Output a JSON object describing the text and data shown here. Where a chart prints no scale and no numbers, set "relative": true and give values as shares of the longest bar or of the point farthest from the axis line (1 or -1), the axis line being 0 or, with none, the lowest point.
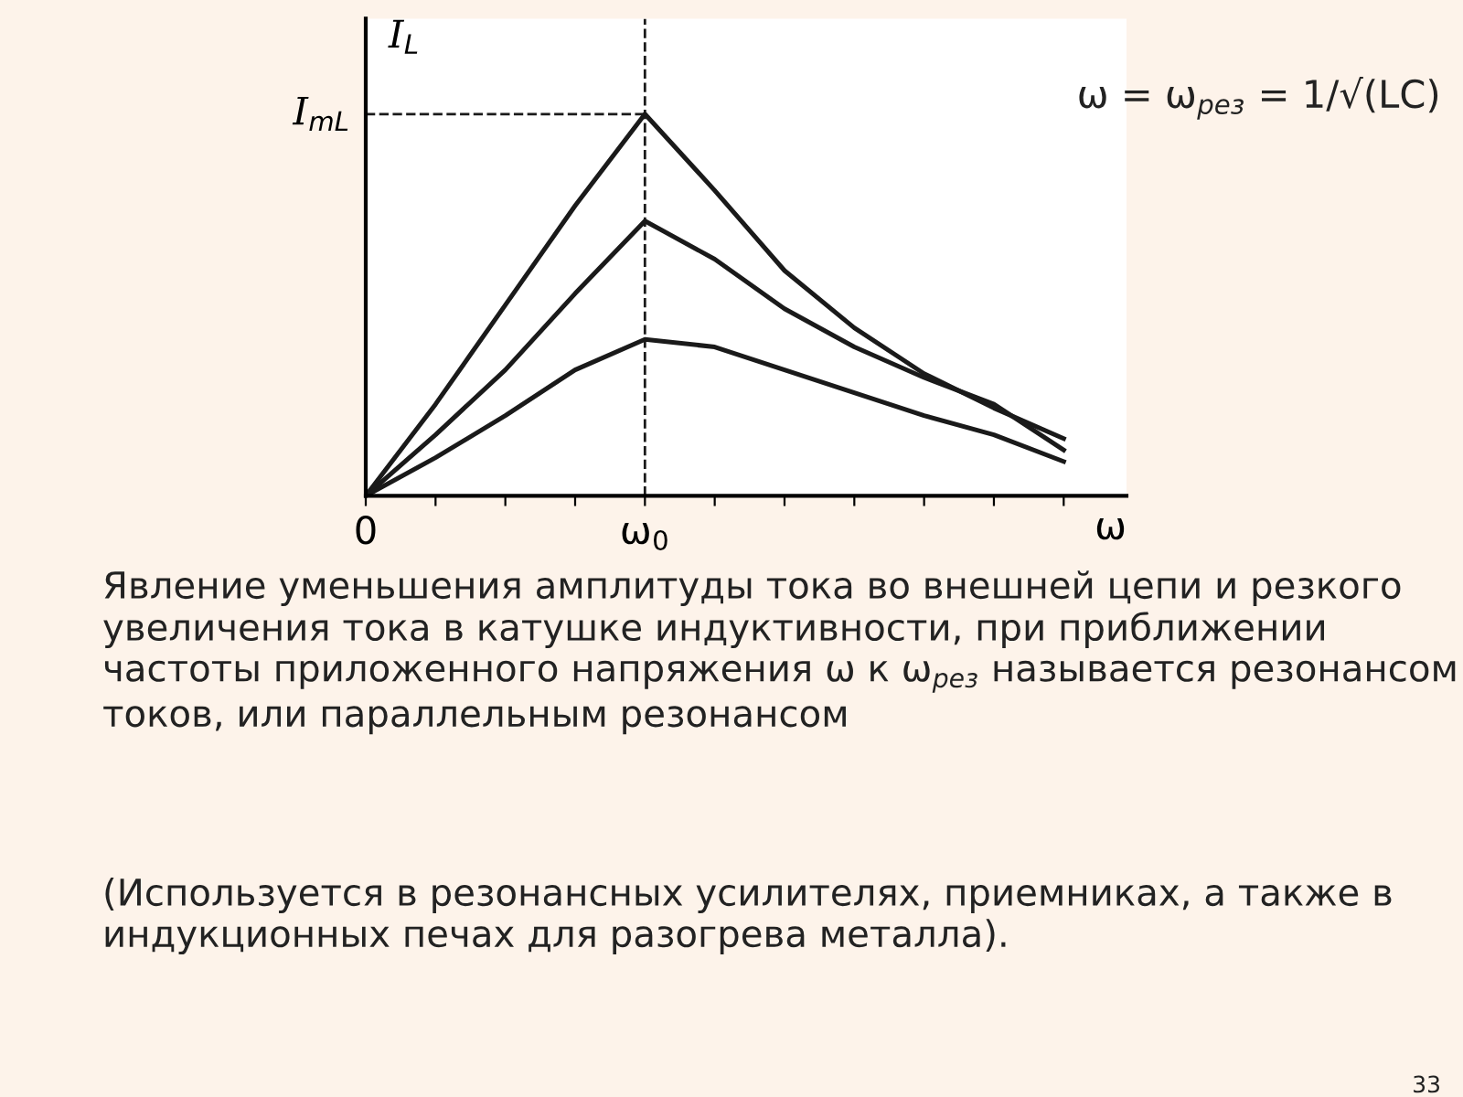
{
  "chart_data": {
    "type": "line",
    "relative": true,
    "xlabel": "ω",
    "ylabel": "I$_{L}$",
    "categories": [
      "0",
      null,
      null,
      null,
      "ω$_{0}$",
      null,
      null,
      null,
      null,
      null,
      null
    ],
    "series": [
      {
        "color": "#1a1a1a",
        "values": [
          0,
          0.24,
          0.5,
          0.76,
          1.0,
          0.8,
          0.59,
          0.44,
          0.32,
          0.23,
          0.15
        ]
      },
      {
        "color": "#1a1a1a",
        "values": [
          0,
          0.16,
          0.33,
          0.53,
          0.72,
          0.62,
          0.49,
          0.39,
          0.31,
          0.24,
          0.12
        ]
      },
      {
        "color": "#1a1a1a",
        "values": [
          0,
          0.1,
          0.21,
          0.33,
          0.41,
          0.39,
          0.33,
          0.27,
          0.21,
          0.16,
          0.09
        ]
      }
    ],
    "ref_lines": [
      {
        "axis": "y",
        "value": 1,
        "label": "I$_{mL}$",
        "line_style": "dashed",
        "color": "#1a1a1a"
      },
      {
        "axis": "x",
        "value": "ω$_{0}$",
        "line_style": "dashed",
        "color": "#1a1a1a"
      }
    ],
    "line_style": "solid",
    "marker": "none",
    "grid": false,
    "legend": false,
    "annotations": [
      "ω = ω$_{рез}$ = 1/√(LC)",
      "Явление уменьшения амплитуды тока во внешней цепи и резкого увеличения тока в катушке индуктивности, при приближении частоты приложенного напряжения ω к ω$_{рез}$ называется резонансом токов, или параллельным резонансом",
      "(Используется в резонансных усилителях, приемниках, а также в индукционных печах для разогрева металла).",
      "33"
    ]
  }
}
